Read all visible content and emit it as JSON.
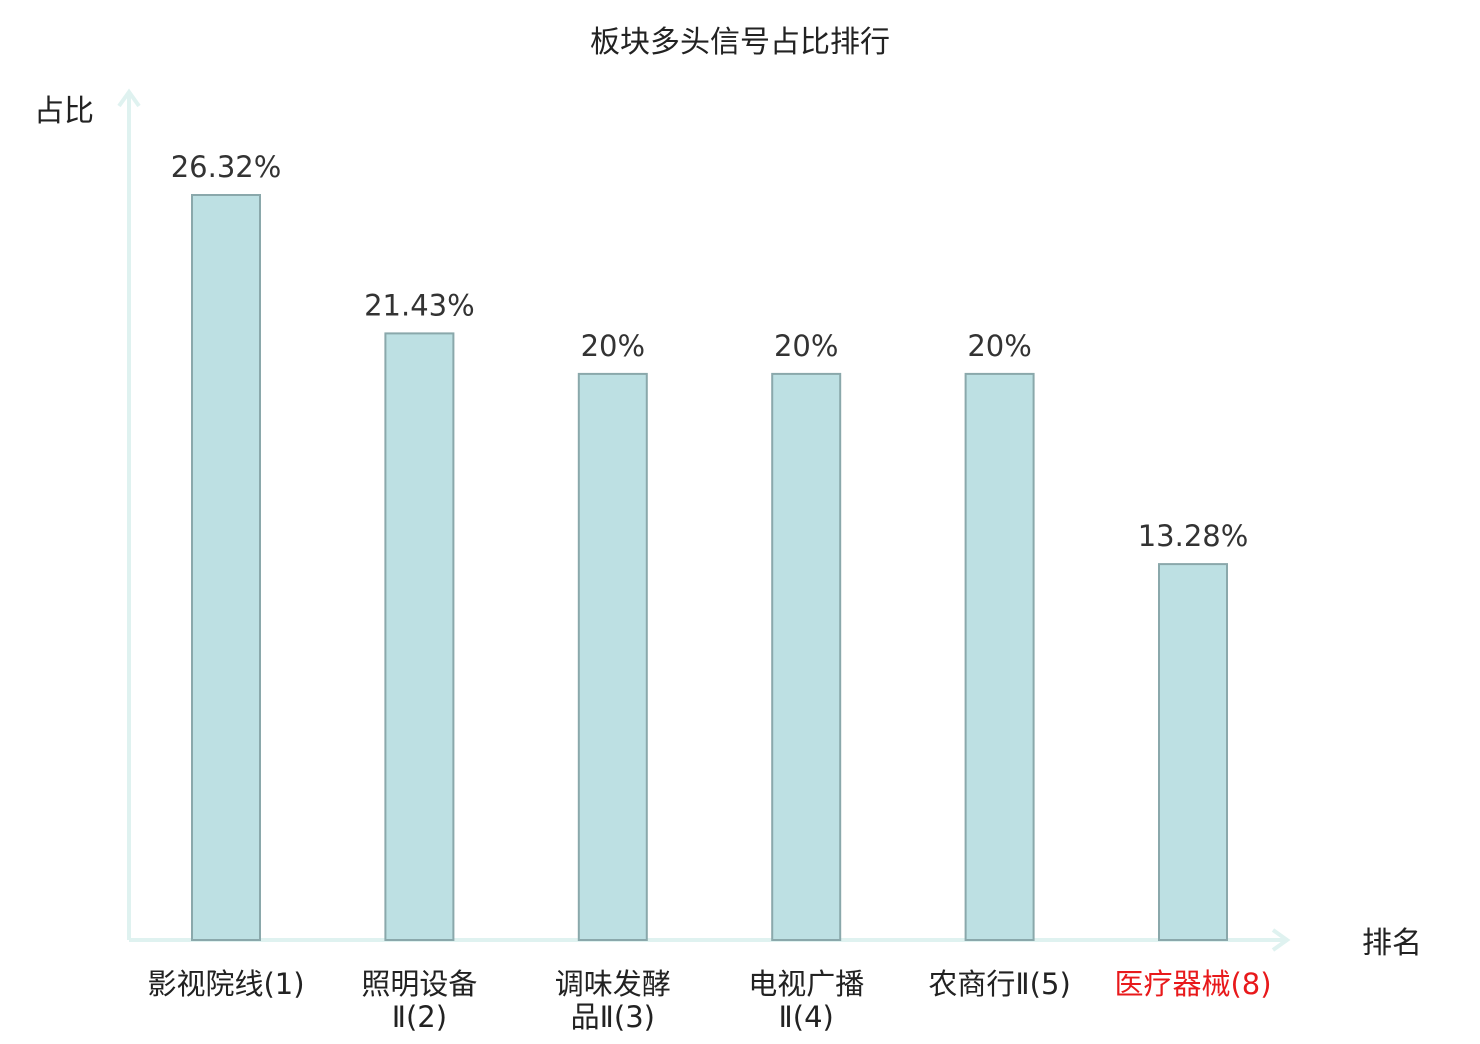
{
  "chart_data": {
    "type": "bar",
    "title": "板块多头信号占比排行",
    "xlabel": "排名",
    "ylabel": "占比",
    "categories": [
      {
        "lines": [
          "影视院线(1)"
        ],
        "highlight": false
      },
      {
        "lines": [
          "照明设备",
          "Ⅱ(2)"
        ],
        "highlight": false
      },
      {
        "lines": [
          "调味发酵",
          "品Ⅱ(3)"
        ],
        "highlight": false
      },
      {
        "lines": [
          "电视广播",
          "Ⅱ(4)"
        ],
        "highlight": false
      },
      {
        "lines": [
          "农商行Ⅱ(5)"
        ],
        "highlight": false
      },
      {
        "lines": [
          "医疗器械(8)"
        ],
        "highlight": true
      }
    ],
    "values": [
      26.32,
      21.43,
      20,
      20,
      20,
      13.28
    ],
    "value_labels": [
      "26.32%",
      "21.43%",
      "20%",
      "20%",
      "20%",
      "13.28%"
    ],
    "ylim": [
      0,
      28
    ],
    "grid": false,
    "colors": {
      "bar_fill": "#bde0e3",
      "bar_stroke": "#8aa8ab",
      "axis": "#dff2f0",
      "text": "#333333",
      "highlight": "#e8191b"
    }
  }
}
